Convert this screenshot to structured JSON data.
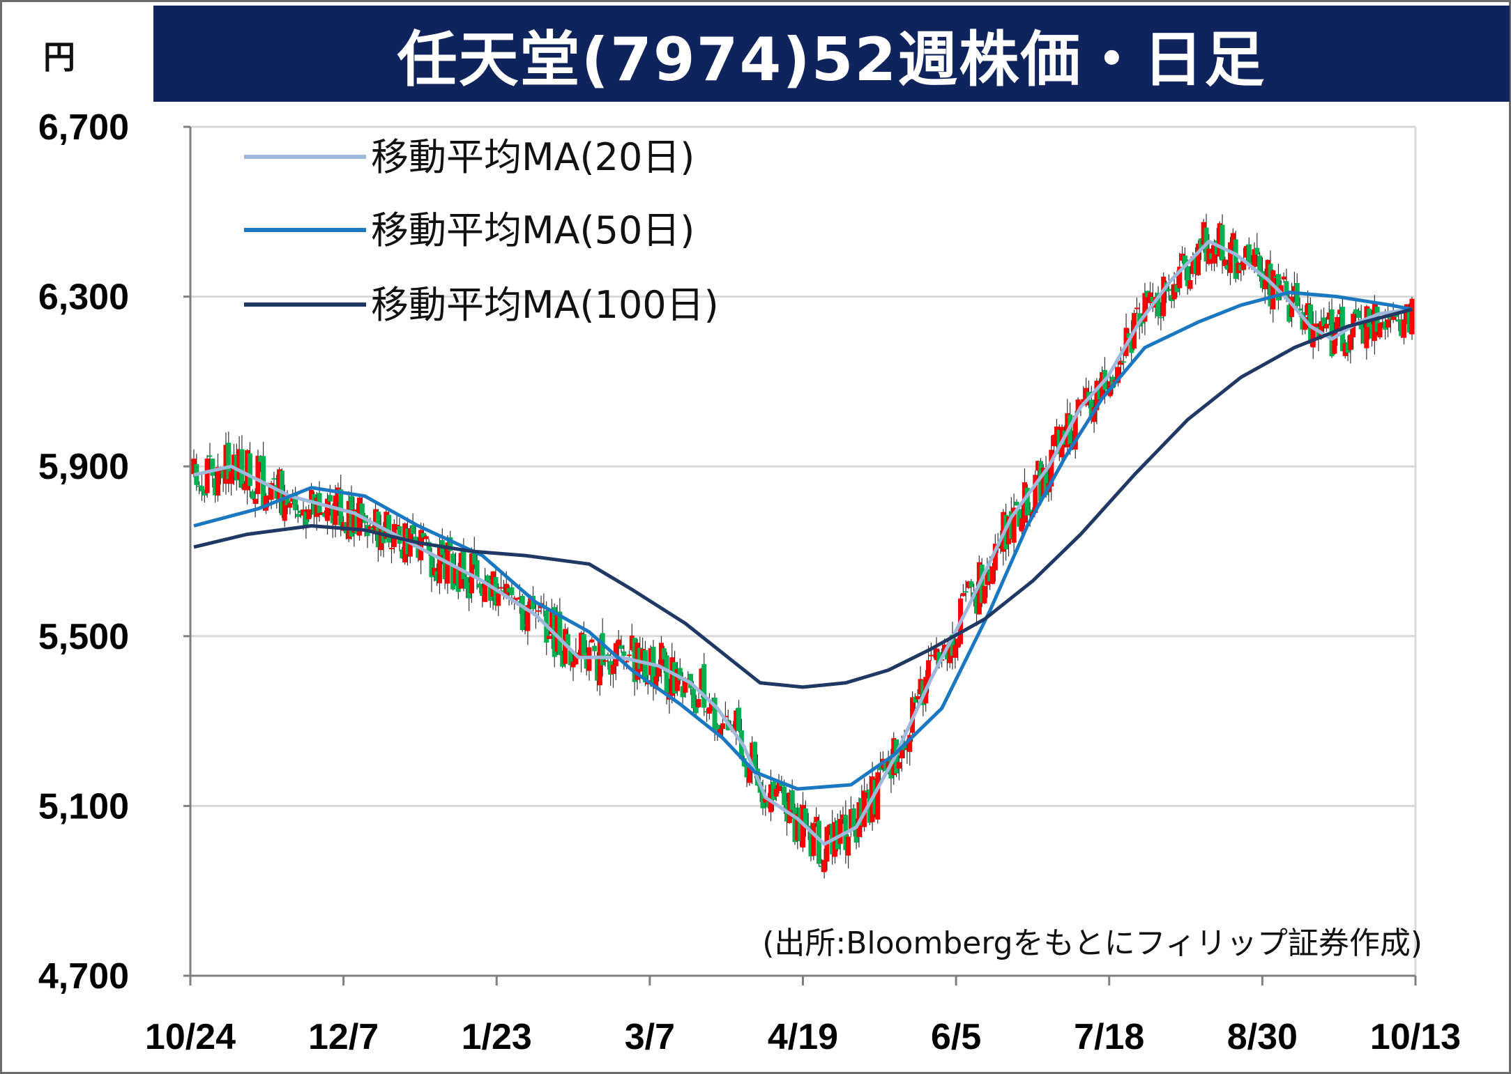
{
  "title": "任天堂(7974)52週株価・日足",
  "unit": "円",
  "source": "(出所:Bloombergをもとにフィリップ証券作成)",
  "colors": {
    "title_bg": "#0f245c",
    "up": "#ff0000",
    "down": "#00b050",
    "ma20": "#9fb9dc",
    "ma50": "#1a78c2",
    "ma100": "#1f3864",
    "grid": "#d9d9d9"
  },
  "chart_data": {
    "type": "candlestick",
    "y_ticks": [
      "4,700",
      "5,100",
      "5,500",
      "5,900",
      "6,300",
      "6,700"
    ],
    "ylim": [
      4700,
      6700
    ],
    "x_ticks": [
      "10/24",
      "12/7",
      "1/23",
      "3/7",
      "4/19",
      "6/5",
      "7/18",
      "8/30",
      "10/13"
    ],
    "grid": true,
    "legend": {
      "position": "top-left",
      "entries": [
        {
          "label": "移動平均MA(20日)",
          "color": "#9fb9dc"
        },
        {
          "label": "移動平均MA(50日)",
          "color": "#1a78c2"
        },
        {
          "label": "移動平均MA(100日)",
          "color": "#1f3864"
        }
      ]
    },
    "series": [
      {
        "name": "移動平均MA(20日)",
        "points": [
          [
            0,
            5880
          ],
          [
            14,
            5900
          ],
          [
            36,
            5830
          ],
          [
            60,
            5790
          ],
          [
            84,
            5710
          ],
          [
            108,
            5630
          ],
          [
            128,
            5550
          ],
          [
            144,
            5450
          ],
          [
            160,
            5450
          ],
          [
            174,
            5430
          ],
          [
            186,
            5390
          ],
          [
            196,
            5330
          ],
          [
            206,
            5240
          ],
          [
            214,
            5120
          ],
          [
            226,
            5070
          ],
          [
            236,
            5010
          ],
          [
            248,
            5050
          ],
          [
            262,
            5210
          ],
          [
            276,
            5400
          ],
          [
            290,
            5570
          ],
          [
            306,
            5780
          ],
          [
            320,
            5900
          ],
          [
            332,
            6040
          ],
          [
            342,
            6110
          ],
          [
            354,
            6240
          ],
          [
            366,
            6340
          ],
          [
            380,
            6430
          ],
          [
            390,
            6400
          ],
          [
            402,
            6340
          ],
          [
            410,
            6290
          ],
          [
            418,
            6230
          ],
          [
            426,
            6200
          ],
          [
            436,
            6240
          ],
          [
            444,
            6260
          ],
          [
            456,
            6270
          ]
        ]
      },
      {
        "name": "移動平均MA(50日)",
        "points": [
          [
            0,
            5760
          ],
          [
            24,
            5800
          ],
          [
            44,
            5850
          ],
          [
            64,
            5830
          ],
          [
            84,
            5760
          ],
          [
            108,
            5690
          ],
          [
            128,
            5580
          ],
          [
            148,
            5510
          ],
          [
            164,
            5420
          ],
          [
            182,
            5340
          ],
          [
            198,
            5260
          ],
          [
            210,
            5180
          ],
          [
            226,
            5140
          ],
          [
            246,
            5150
          ],
          [
            262,
            5220
          ],
          [
            280,
            5330
          ],
          [
            298,
            5560
          ],
          [
            312,
            5760
          ],
          [
            326,
            5920
          ],
          [
            340,
            6060
          ],
          [
            356,
            6180
          ],
          [
            376,
            6240
          ],
          [
            392,
            6280
          ],
          [
            410,
            6310
          ],
          [
            428,
            6300
          ],
          [
            448,
            6280
          ],
          [
            456,
            6270
          ]
        ]
      },
      {
        "name": "移動平均MA(100日)",
        "points": [
          [
            0,
            5710
          ],
          [
            20,
            5740
          ],
          [
            44,
            5760
          ],
          [
            64,
            5750
          ],
          [
            84,
            5720
          ],
          [
            104,
            5700
          ],
          [
            124,
            5690
          ],
          [
            148,
            5670
          ],
          [
            164,
            5610
          ],
          [
            184,
            5530
          ],
          [
            200,
            5450
          ],
          [
            212,
            5390
          ],
          [
            228,
            5380
          ],
          [
            244,
            5390
          ],
          [
            260,
            5420
          ],
          [
            276,
            5470
          ],
          [
            296,
            5540
          ],
          [
            314,
            5630
          ],
          [
            332,
            5740
          ],
          [
            352,
            5880
          ],
          [
            372,
            6010
          ],
          [
            392,
            6110
          ],
          [
            412,
            6180
          ],
          [
            432,
            6230
          ],
          [
            456,
            6270
          ]
        ]
      }
    ]
  }
}
